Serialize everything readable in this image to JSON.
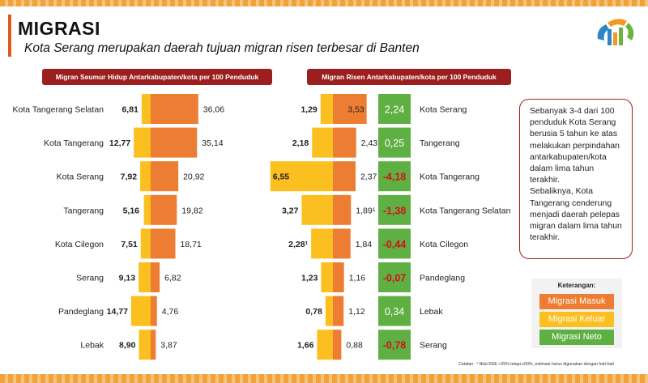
{
  "header": {
    "title": "MIGRASI",
    "subtitle": "Kota Serang merupakan daerah tujuan migran risen terbesar di Banten"
  },
  "logo": {
    "name": "bps-logo-icon"
  },
  "colors": {
    "masuk": "#ec7d32",
    "keluar": "#fbbf1f",
    "neto": "#5fb042",
    "header_bg": "#9c1f1f",
    "negative_text": "#d3101d"
  },
  "chart_data": [
    {
      "type": "bar",
      "title": "Migran Seumur Hidup Antarkabupaten/kota per 100 Penduduk",
      "categories": [
        "Kota Tangerang Selatan",
        "Kota Tangerang",
        "Kota Serang",
        "Tangerang",
        "Kota Cilegon",
        "Serang",
        "Pandeglang",
        "Lebak"
      ],
      "series": [
        {
          "name": "Migrasi Keluar",
          "values": [
            "6,81",
            "12,77",
            "7,92",
            "5,16",
            "7,51",
            "9,13",
            "14,77",
            "8,90"
          ]
        },
        {
          "name": "Migrasi Masuk",
          "values": [
            "36,06",
            "35,14",
            "20,92",
            "19,82",
            "18,71",
            "6,82",
            "4,76",
            "3,87"
          ]
        }
      ]
    },
    {
      "type": "bar",
      "title": "Migran Risen Antarkabupaten/kota per 100 Penduduk",
      "categories": [
        "Kota Serang",
        "Tangerang",
        "Kota Tangerang",
        "Kota Tangerang Selatan",
        "Kota Cilegon",
        "Pandeglang",
        "Lebak",
        "Serang"
      ],
      "series": [
        {
          "name": "Migrasi Keluar",
          "values": [
            "1,29",
            "2,18",
            "6,55",
            "3,27",
            "2,28¹",
            "1,23",
            "0,78",
            "1,66"
          ]
        },
        {
          "name": "Migrasi Masuk",
          "values": [
            "3,53",
            "2,43¹",
            "2,37",
            "1,89¹",
            "1,84",
            "1,16",
            "1,12",
            "0,88"
          ]
        },
        {
          "name": "Migrasi Neto",
          "values": [
            "2,24",
            "0,25",
            "-4,18",
            "-1,38",
            "-0,44",
            "-0,07",
            "0,34",
            "-0,78"
          ]
        }
      ]
    }
  ],
  "note": {
    "paragraph1": "Sebanyak 3-4 dari 100 penduduk Kota Serang berusia 5 tahun ke atas melakukan perpindahan antarkabupaten/kota dalam lima tahun terakhir.",
    "paragraph2": "Sebaliknya, Kota Tangerang cenderung menjadi daerah pelepas migran dalam lima tahun terakhir."
  },
  "legend": {
    "title": "Keterangan:",
    "items": [
      "Migrasi Masuk",
      "Migrasi Keluar",
      "Migrasi Neto"
    ]
  },
  "footnote": "Catatan : ¹ Nilai RSE >25% tetapi ≤50%, estimasi harus digunakan dengan hati-hati"
}
